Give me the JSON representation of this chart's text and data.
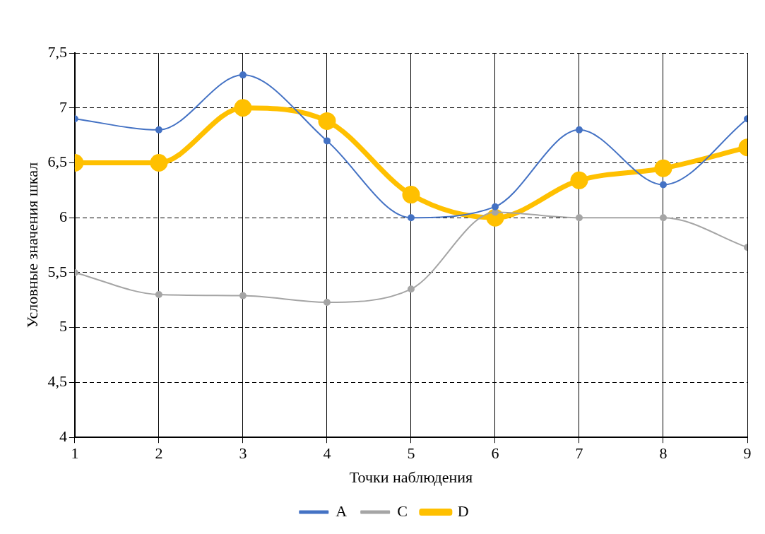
{
  "chart_data": {
    "type": "line",
    "xlabel": "Точки наблюдения",
    "ylabel": "Условные значения шкал",
    "x": [
      1,
      2,
      3,
      4,
      5,
      6,
      7,
      8,
      9
    ],
    "xlim": [
      1,
      9
    ],
    "xticks": [
      1,
      2,
      3,
      4,
      5,
      6,
      7,
      8,
      9
    ],
    "ylim": [
      4,
      7.5
    ],
    "yticks": [
      {
        "value": 4,
        "label": "4"
      },
      {
        "value": 4.5,
        "label": "4,5"
      },
      {
        "value": 5,
        "label": "5"
      },
      {
        "value": 5.5,
        "label": "5,5"
      },
      {
        "value": 6,
        "label": "6"
      },
      {
        "value": 6.5,
        "label": "6,5"
      },
      {
        "value": 7,
        "label": "7"
      },
      {
        "value": 7.5,
        "label": "7,5"
      }
    ],
    "series": [
      {
        "name": "A",
        "color": "#4472c4",
        "values": [
          6.9,
          6.8,
          7.3,
          6.7,
          6.0,
          6.1,
          6.8,
          6.3,
          6.9
        ]
      },
      {
        "name": "C",
        "color": "#a5a5a5",
        "values": [
          5.5,
          5.3,
          5.29,
          5.23,
          5.35,
          6.05,
          6.0,
          6.0,
          5.73
        ]
      },
      {
        "name": "D",
        "color": "#ffc000",
        "values": [
          6.5,
          6.5,
          7.0,
          6.88,
          6.21,
          6.0,
          6.34,
          6.45,
          6.64
        ]
      }
    ],
    "grid": true,
    "legend": "bottom",
    "marker": "circle",
    "line_style": "solid"
  }
}
